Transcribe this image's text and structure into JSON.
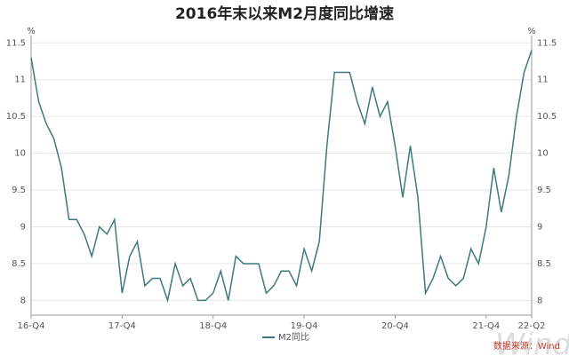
{
  "chart_data": {
    "type": "line",
    "title": "2016年末以来M2月度同比增速",
    "y_unit": "%",
    "y2_unit": "%",
    "categories": [
      "16-Q4",
      null,
      null,
      null,
      null,
      null,
      null,
      null,
      null,
      null,
      null,
      null,
      "17-Q4",
      null,
      null,
      null,
      null,
      null,
      null,
      null,
      null,
      null,
      null,
      null,
      "18-Q4",
      null,
      null,
      null,
      null,
      null,
      null,
      null,
      null,
      null,
      null,
      null,
      "19-Q4",
      null,
      null,
      null,
      null,
      null,
      null,
      null,
      null,
      null,
      null,
      null,
      "20-Q4",
      null,
      null,
      null,
      null,
      null,
      null,
      null,
      null,
      null,
      null,
      null,
      "21-Q4",
      null,
      null,
      null,
      null,
      null,
      "22-Q2"
    ],
    "series": [
      {
        "name": "M2同比",
        "color": "#3d7a7a",
        "values": [
          11.3,
          10.7,
          10.4,
          10.2,
          9.8,
          9.1,
          9.1,
          8.9,
          8.6,
          9.0,
          8.9,
          9.1,
          8.1,
          8.6,
          8.8,
          8.2,
          8.3,
          8.3,
          8.0,
          8.5,
          8.2,
          8.3,
          8.0,
          8.0,
          8.1,
          8.4,
          8.0,
          8.6,
          8.5,
          8.5,
          8.5,
          8.1,
          8.2,
          8.4,
          8.4,
          8.2,
          8.7,
          8.4,
          8.8,
          10.1,
          11.1,
          11.1,
          11.1,
          10.7,
          10.4,
          10.9,
          10.5,
          10.7,
          10.1,
          9.4,
          10.1,
          9.4,
          8.1,
          8.3,
          8.6,
          8.3,
          8.2,
          8.3,
          8.7,
          8.5,
          9.0,
          9.8,
          9.2,
          9.7,
          10.5,
          11.1,
          11.4
        ]
      }
    ],
    "ylim": [
      7.8,
      11.6
    ],
    "yticks": [
      8,
      8.5,
      9,
      9.5,
      10,
      10.5,
      11,
      11.5
    ],
    "y2lim": [
      7.8,
      11.6
    ],
    "y2ticks": [
      8,
      8.5,
      9,
      9.5,
      10,
      10.5,
      11,
      11.5
    ],
    "grid": true,
    "legend": "bottom",
    "source": "数据来源：Wind",
    "watermark": "Wind"
  }
}
